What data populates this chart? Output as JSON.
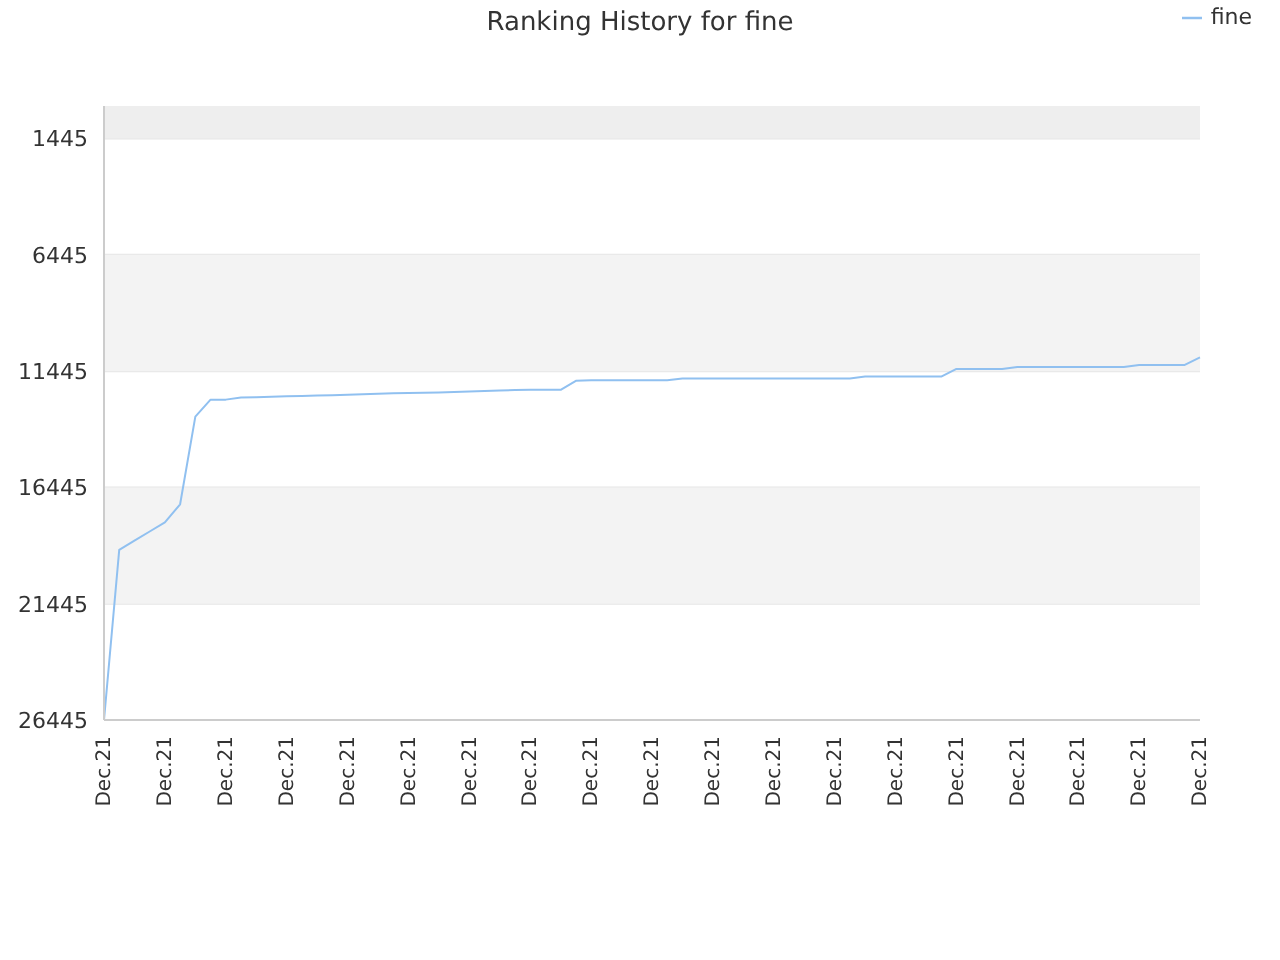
{
  "chart_data": {
    "type": "line",
    "title": "Ranking History for fine",
    "categories": [
      "Dec.21",
      null,
      null,
      null,
      "Dec.21",
      null,
      null,
      null,
      "Dec.21",
      null,
      null,
      null,
      "Dec.21",
      null,
      null,
      null,
      "Dec.21",
      null,
      null,
      null,
      "Dec.21",
      null,
      null,
      null,
      "Dec.21",
      null,
      null,
      null,
      "Dec.21",
      null,
      null,
      null,
      "Dec.21",
      null,
      null,
      null,
      "Dec.21",
      null,
      null,
      null,
      "Dec.21",
      null,
      null,
      null,
      "Dec.21",
      null,
      null,
      null,
      "Dec.21",
      null,
      null,
      null,
      "Dec.21",
      null,
      null,
      null,
      "Dec.21",
      null,
      null,
      null,
      "Dec.21",
      null,
      null,
      null,
      "Dec.21",
      null,
      null,
      null,
      "Dec.21",
      null,
      null,
      null,
      "Dec.21"
    ],
    "series": [
      {
        "name": "fine",
        "color": "#90c0f0",
        "values": [
          26445,
          19130,
          18730,
          18340,
          17950,
          17170,
          13400,
          12670,
          12670,
          12580,
          12570,
          12550,
          12530,
          12510,
          12490,
          12480,
          12460,
          12440,
          12420,
          12400,
          12390,
          12370,
          12360,
          12340,
          12320,
          12300,
          12280,
          12260,
          12250,
          12250,
          12250,
          11860,
          11840,
          11840,
          11840,
          11840,
          11840,
          11840,
          11760,
          11760,
          11760,
          11760,
          11760,
          11760,
          11760,
          11760,
          11760,
          11760,
          11760,
          11760,
          11680,
          11680,
          11680,
          11680,
          11680,
          11680,
          11350,
          11350,
          11350,
          11350,
          11270,
          11270,
          11270,
          11270,
          11270,
          11270,
          11270,
          11270,
          11180,
          11180,
          11180,
          11180,
          10850
        ]
      }
    ],
    "ylim": [
      26445,
      45
    ],
    "yticks": [
      1445,
      6445,
      11445,
      16445,
      21445,
      26445
    ],
    "bands": [
      {
        "axis": "y",
        "from": 45,
        "to": 1445,
        "color": "#eeeeee"
      },
      {
        "axis": "y",
        "from": 6445,
        "to": 11445,
        "color": "#f3f3f3"
      },
      {
        "axis": "y",
        "from": 16445,
        "to": 21445,
        "color": "#f3f3f3"
      }
    ],
    "grid": "y",
    "legend": "top right",
    "marker": "none",
    "line_style": "solid"
  }
}
